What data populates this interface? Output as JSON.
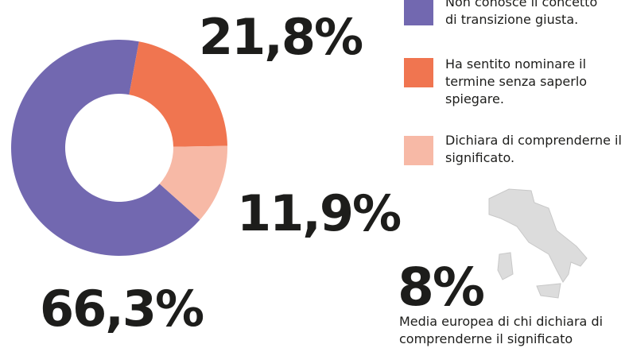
{
  "chart_data": {
    "type": "pie",
    "donut": true,
    "categories": [
      "Non conosce il concetto di transizione giusta.",
      "Ha sentito nominare il termine senza saperlo spiegare.",
      "Dichiara di comprenderne il significato."
    ],
    "values": [
      66.3,
      21.8,
      11.9
    ],
    "value_labels": [
      "66,3%",
      "21,8%",
      "11,9%"
    ],
    "colors": [
      "#7268b0",
      "#f07550",
      "#f7b9a6"
    ],
    "annotation": {
      "value": 8,
      "value_label": "8%",
      "text": "Media europea di chi dichiara di comprenderne il significato"
    }
  }
}
